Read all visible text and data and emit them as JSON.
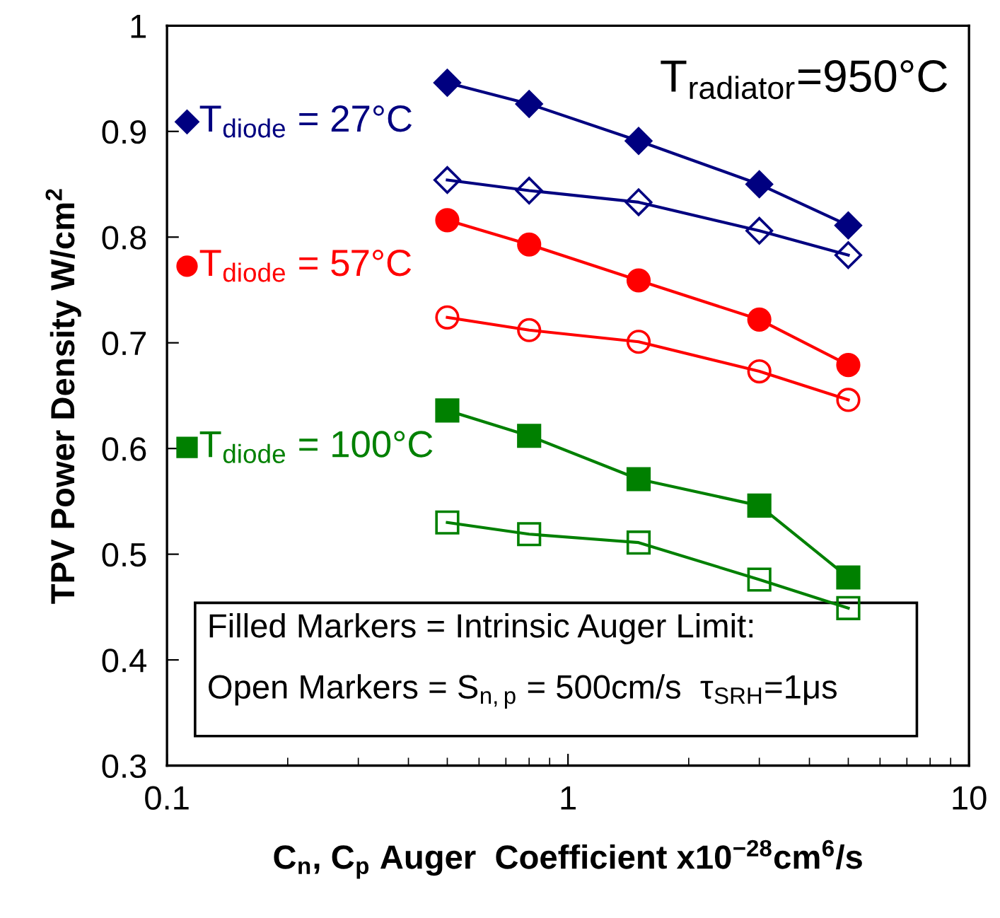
{
  "chart_data": {
    "type": "line",
    "xlabel": "C$_{n}$, C$_{p}$ Auger  Coefficient x10$^{−28}$cm$^{6}$/s",
    "ylabel": "TPV Power Density W/cm$^{2}$",
    "x": [
      0.5,
      0.8,
      1.5,
      3,
      5
    ],
    "series": [
      {
        "name": "T$_{diode}$ = 27°C",
        "color": "#000080",
        "marker": "diamond",
        "values": [
          0.946,
          0.926,
          0.891,
          0.85,
          0.811
        ]
      },
      {
        "color": "#000080",
        "marker": "diamond-open",
        "values": [
          0.854,
          0.844,
          0.833,
          0.806,
          0.783
        ]
      },
      {
        "name": "T$_{diode}$ = 57°C",
        "color": "#ff0000",
        "marker": "circle",
        "values": [
          0.816,
          0.793,
          0.759,
          0.722,
          0.679
        ]
      },
      {
        "color": "#ff0000",
        "marker": "circle-open",
        "values": [
          0.724,
          0.712,
          0.701,
          0.673,
          0.646
        ]
      },
      {
        "name": "T$_{diode}$ = 100°C",
        "color": "#008000",
        "marker": "square",
        "values": [
          0.636,
          0.612,
          0.571,
          0.546,
          0.478
        ]
      },
      {
        "color": "#008000",
        "marker": "square-open",
        "values": [
          0.53,
          0.519,
          0.511,
          0.476,
          0.449
        ]
      }
    ],
    "log": "x",
    "xlim": [
      0.1,
      10
    ],
    "xticks": [
      0.1,
      1,
      10
    ],
    "ylim": [
      0.3,
      1.0
    ],
    "yticks": [
      0.3,
      0.4,
      0.5,
      0.6,
      0.7,
      0.8,
      0.9,
      1
    ],
    "grid": false,
    "legend": "left",
    "annotations": [
      "T$_{radiator}$=950°C",
      "Filled Markers = Intrinsic Auger Limit:",
      "Open Markers = S$_{n,p}$ = 500cm/s  τ$_{SRH}$=1μs"
    ]
  }
}
